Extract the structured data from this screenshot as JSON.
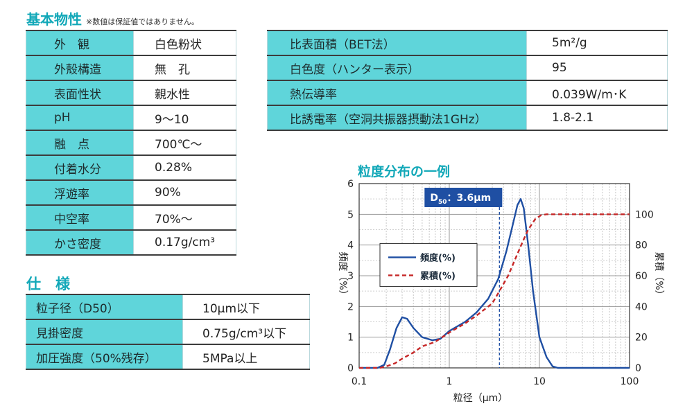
{
  "basic": {
    "title": "基本物性",
    "note": "※数値は保証値ではありません。",
    "rows": [
      {
        "key": "外　観",
        "value": "白色粉状"
      },
      {
        "key": "外殻構造",
        "value": "無　孔"
      },
      {
        "key": "表面性状",
        "value": "親水性"
      },
      {
        "key": "pH",
        "value": " 9〜10"
      },
      {
        "key": "融　点",
        "value": "700℃〜"
      },
      {
        "key": "付着水分",
        "value": "0.28%"
      },
      {
        "key": "浮遊率",
        "value": "90%"
      },
      {
        "key": "中空率",
        "value": "70%〜"
      },
      {
        "key": "かさ密度",
        "value": "0.17g/cm³"
      }
    ]
  },
  "bet": {
    "rows": [
      {
        "key": "比表面積（BET法）",
        "value": "5m²/g"
      },
      {
        "key": "白色度（ハンター表示）",
        "value": "95"
      },
      {
        "key": "熱伝導率",
        "value": "0.039W/m･K"
      },
      {
        "key": "比誘電率（空洞共振器摂動法1GHz）",
        "value": "1.8-2.1"
      }
    ]
  },
  "spec": {
    "title": "仕　様",
    "rows": [
      {
        "key": "粒子径（D50）",
        "value": "10μm以下"
      },
      {
        "key": "見掛密度",
        "value": "0.75g/cm³以下"
      },
      {
        "key": "加圧強度（50%残存）",
        "value": "5MPa以上"
      }
    ]
  },
  "chart_title": "粒度分布の一例",
  "chart_data": {
    "type": "line",
    "title": "粒度分布の一例",
    "xlabel": "粒径（μm）",
    "ylabel_left": "頻度（%）",
    "ylabel_right": "累積（%）",
    "xscale": "log",
    "xlim": [
      0.1,
      100
    ],
    "ylim_left": [
      0,
      6
    ],
    "ylim_right": [
      0,
      120
    ],
    "x_ticks": [
      "0.1",
      "1",
      "10",
      "100"
    ],
    "y_left_ticks": [
      "0",
      "1",
      "2",
      "3",
      "4",
      "5",
      "6"
    ],
    "y_right_ticks": [
      "0",
      "20",
      "40",
      "60",
      "80",
      "100"
    ],
    "grid": true,
    "legend_position": "center-left",
    "annotation": {
      "label_main": "D",
      "label_sub": "50",
      "label_rest": "：3.6μm",
      "x": 3.6
    },
    "series": [
      {
        "name": "頻度(%)",
        "axis": "left",
        "color": "#1f4fa3",
        "style": "solid",
        "x": [
          0.1,
          0.16,
          0.19,
          0.22,
          0.26,
          0.3,
          0.34,
          0.4,
          0.5,
          0.65,
          0.8,
          1.0,
          1.5,
          2.0,
          2.7,
          3.5,
          4.3,
          5.0,
          5.7,
          6.2,
          6.7,
          7.5,
          8.5,
          10,
          12,
          14,
          16,
          20,
          100
        ],
        "y": [
          0,
          0,
          0.1,
          0.6,
          1.3,
          1.65,
          1.6,
          1.3,
          1.0,
          0.9,
          0.95,
          1.2,
          1.5,
          1.8,
          2.25,
          2.9,
          3.8,
          4.6,
          5.3,
          5.5,
          5.2,
          4.0,
          2.5,
          1.0,
          0.35,
          0.05,
          0,
          0,
          0
        ]
      },
      {
        "name": "累積(%)",
        "axis": "right",
        "color": "#c62828",
        "style": "dashed",
        "x": [
          0.1,
          0.17,
          0.2,
          0.25,
          0.3,
          0.4,
          0.5,
          0.7,
          1.0,
          1.5,
          2.0,
          3.0,
          3.6,
          4.5,
          5.5,
          6.5,
          7.5,
          9,
          10.5,
          12,
          15,
          20,
          100
        ],
        "y": [
          0,
          0,
          1,
          3,
          6,
          10,
          14,
          17,
          23,
          29,
          34,
          42,
          50,
          60,
          72,
          82,
          90,
          97,
          99.5,
          100,
          100,
          100,
          100
        ]
      }
    ]
  }
}
